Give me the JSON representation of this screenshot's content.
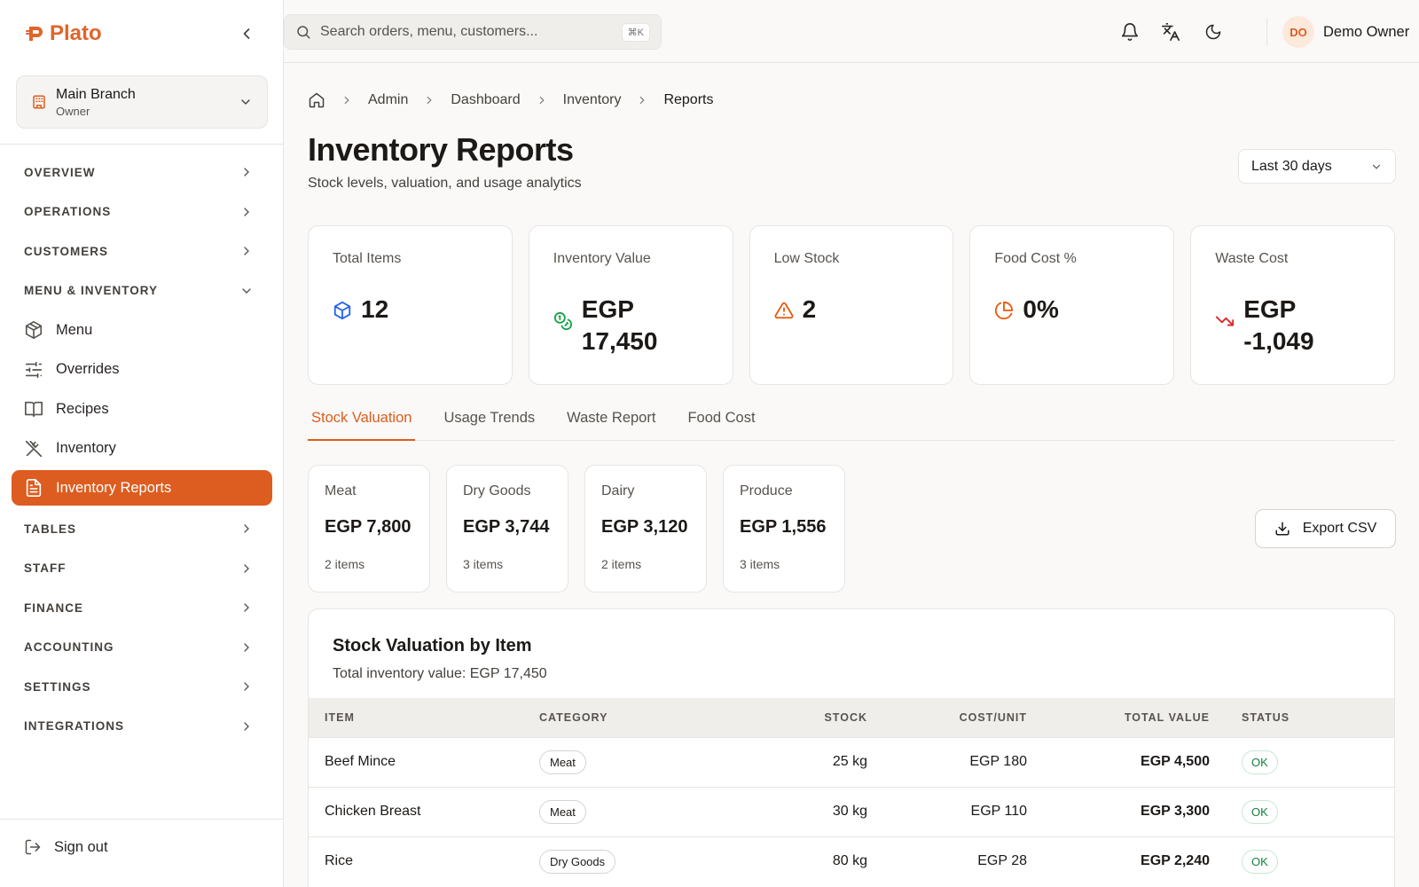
{
  "app": {
    "name": "Plato",
    "brand_color": "#dd5c1f"
  },
  "branch": {
    "name": "Main Branch",
    "role": "Owner"
  },
  "nav": {
    "overview": "OVERVIEW",
    "operations": "OPERATIONS",
    "customers": "CUSTOMERS",
    "menu_inventory": "MENU & INVENTORY",
    "items": [
      {
        "label": "Menu",
        "icon": "package-icon"
      },
      {
        "label": "Overrides",
        "icon": "sliders-icon"
      },
      {
        "label": "Recipes",
        "icon": "book-icon"
      },
      {
        "label": "Inventory",
        "icon": "utensils-crossed-icon"
      },
      {
        "label": "Inventory Reports",
        "icon": "file-text-icon",
        "active": true
      }
    ],
    "tables": "TABLES",
    "staff": "STAFF",
    "finance": "FINANCE",
    "accounting": "ACCOUNTING",
    "settings": "SETTINGS",
    "integrations": "INTEGRATIONS",
    "sign_out": "Sign out"
  },
  "topbar": {
    "search_placeholder": "Search orders, menu, customers...",
    "shortcut": "⌘K",
    "user_initials": "DO",
    "user_name": "Demo Owner"
  },
  "breadcrumb": [
    "Admin",
    "Dashboard",
    "Inventory",
    "Reports"
  ],
  "page": {
    "title": "Inventory Reports",
    "subtitle": "Stock levels, valuation, and usage analytics",
    "range": "Last 30 days"
  },
  "kpis": [
    {
      "label": "Total Items",
      "value": "12",
      "icon": "box-icon",
      "color": "#2563eb"
    },
    {
      "label": "Inventory Value",
      "value": "EGP 17,450",
      "icon": "coins-icon",
      "color": "#16a34a"
    },
    {
      "label": "Low Stock",
      "value": "2",
      "icon": "alert-triangle-icon",
      "color": "#ea580c"
    },
    {
      "label": "Food Cost %",
      "value": "0%",
      "icon": "pie-chart-icon",
      "color": "#ea580c"
    },
    {
      "label": "Waste Cost",
      "value": "EGP -1,049",
      "icon": "trending-down-icon",
      "color": "#dc2626"
    }
  ],
  "tabs": [
    "Stock Valuation",
    "Usage Trends",
    "Waste Report",
    "Food Cost"
  ],
  "categories": [
    {
      "name": "Meat",
      "value": "EGP 7,800",
      "count": "2 items"
    },
    {
      "name": "Dry Goods",
      "value": "EGP 3,744",
      "count": "3 items"
    },
    {
      "name": "Dairy",
      "value": "EGP 3,120",
      "count": "2 items"
    },
    {
      "name": "Produce",
      "value": "EGP 1,556",
      "count": "3 items"
    }
  ],
  "export_label": "Export CSV",
  "table": {
    "title": "Stock Valuation by Item",
    "subtitle": "Total inventory value: EGP 17,450",
    "headers": {
      "item": "ITEM",
      "category": "CATEGORY",
      "stock": "STOCK",
      "cost": "COST/UNIT",
      "total": "TOTAL VALUE",
      "status": "STATUS"
    },
    "rows": [
      {
        "item": "Beef Mince",
        "category": "Meat",
        "stock": "25 kg",
        "cost": "EGP 180",
        "total": "EGP 4,500",
        "status": "OK"
      },
      {
        "item": "Chicken Breast",
        "category": "Meat",
        "stock": "30 kg",
        "cost": "EGP 110",
        "total": "EGP 3,300",
        "status": "OK"
      },
      {
        "item": "Rice",
        "category": "Dry Goods",
        "stock": "80 kg",
        "cost": "EGP 28",
        "total": "EGP 2,240",
        "status": "OK"
      }
    ]
  }
}
